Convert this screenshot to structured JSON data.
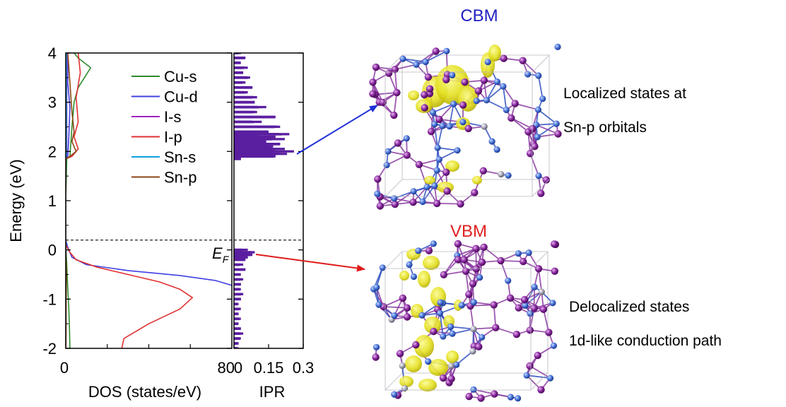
{
  "chart_data": [
    {
      "type": "line",
      "xlabel": "DOS (states/eV)",
      "ylabel": "Energy (eV)",
      "xlim": [
        0,
        80
      ],
      "ylim": [
        -2,
        4
      ],
      "xticks": [
        "0",
        "80"
      ],
      "yticks": [
        "-2",
        "-1",
        "0",
        "1",
        "2",
        "3",
        "4"
      ],
      "fermi_level": 0.2,
      "fermi_label_main": "E",
      "fermi_label_sub": "F",
      "legend_position": "top-right",
      "series": [
        {
          "name": "Cu-s",
          "color": "#2e8b2e",
          "points": [
            [
              4,
              4.0
            ],
            [
              6,
              3.9
            ],
            [
              12,
              3.7
            ],
            [
              6,
              3.3
            ],
            [
              4,
              3.0
            ],
            [
              3,
              2.5
            ],
            [
              2,
              1.9
            ],
            [
              0.5,
              1.85
            ],
            [
              0,
              1.0
            ],
            [
              0,
              0.1
            ],
            [
              0.5,
              -0.3
            ],
            [
              1,
              -0.8
            ],
            [
              1.5,
              -1.2
            ],
            [
              1.8,
              -1.6
            ],
            [
              2,
              -2.0
            ]
          ]
        },
        {
          "name": "Cu-d",
          "color": "#4040e0",
          "points": [
            [
              1,
              4.0
            ],
            [
              1,
              3.4
            ],
            [
              2,
              2.9
            ],
            [
              1.5,
              2.3
            ],
            [
              1,
              1.9
            ],
            [
              0,
              1.85
            ],
            [
              0,
              0.2
            ],
            [
              1,
              0.05
            ],
            [
              3,
              -0.15
            ],
            [
              10,
              -0.3
            ],
            [
              30,
              -0.42
            ],
            [
              55,
              -0.52
            ],
            [
              72,
              -0.62
            ],
            [
              80,
              -0.72
            ]
          ]
        },
        {
          "name": "I-s",
          "color": "#a020c0",
          "points": [
            [
              0.5,
              4.0
            ],
            [
              0.5,
              2.5
            ],
            [
              0.5,
              1.9
            ],
            [
              0,
              1.85
            ],
            [
              0,
              -2.0
            ]
          ]
        },
        {
          "name": "I-p",
          "color": "#e03030",
          "points": [
            [
              6,
              4.0
            ],
            [
              7,
              3.6
            ],
            [
              5,
              3.1
            ],
            [
              6,
              2.6
            ],
            [
              4,
              2.3
            ],
            [
              6,
              2.05
            ],
            [
              3,
              1.9
            ],
            [
              0,
              1.85
            ],
            [
              0,
              0.1
            ],
            [
              2,
              -0.05
            ],
            [
              5,
              -0.2
            ],
            [
              15,
              -0.35
            ],
            [
              30,
              -0.5
            ],
            [
              45,
              -0.65
            ],
            [
              55,
              -0.8
            ],
            [
              61,
              -0.97
            ],
            [
              55,
              -1.2
            ],
            [
              40,
              -1.5
            ],
            [
              28,
              -1.8
            ],
            [
              27,
              -2.0
            ]
          ]
        },
        {
          "name": "Sn-s",
          "color": "#10a0e0",
          "points": [
            [
              0.3,
              4.0
            ],
            [
              0.3,
              1.9
            ],
            [
              0,
              1.85
            ],
            [
              0,
              -2.0
            ]
          ]
        },
        {
          "name": "Sn-p",
          "color": "#8b4513",
          "points": [
            [
              1,
              4.0
            ],
            [
              2,
              3.4
            ],
            [
              3,
              2.8
            ],
            [
              4,
              2.4
            ],
            [
              3,
              2.2
            ],
            [
              5,
              2.0
            ],
            [
              2,
              1.9
            ],
            [
              0,
              1.85
            ],
            [
              0,
              -0.1
            ],
            [
              0.3,
              -0.5
            ],
            [
              0.2,
              -1.0
            ],
            [
              0.1,
              -2.0
            ]
          ]
        }
      ]
    },
    {
      "type": "bar",
      "xlabel": "IPR",
      "xlim": [
        0,
        0.3
      ],
      "ylim": [
        -2,
        4
      ],
      "xticks": [
        "0",
        "0.15",
        "0.3"
      ],
      "color": "#5a1ea0",
      "bins": [
        [
          4.0,
          0.03
        ],
        [
          3.9,
          0.05
        ],
        [
          3.8,
          0.03
        ],
        [
          3.7,
          0.06
        ],
        [
          3.6,
          0.04
        ],
        [
          3.5,
          0.07
        ],
        [
          3.4,
          0.05
        ],
        [
          3.3,
          0.08
        ],
        [
          3.2,
          0.06
        ],
        [
          3.1,
          0.1
        ],
        [
          3.0,
          0.09
        ],
        [
          2.9,
          0.14
        ],
        [
          2.8,
          0.1
        ],
        [
          2.7,
          0.18
        ],
        [
          2.6,
          0.12
        ],
        [
          2.5,
          0.2
        ],
        [
          2.4,
          0.15
        ],
        [
          2.35,
          0.24
        ],
        [
          2.3,
          0.18
        ],
        [
          2.25,
          0.22
        ],
        [
          2.2,
          0.14
        ],
        [
          2.15,
          0.2
        ],
        [
          2.1,
          0.17
        ],
        [
          2.05,
          0.22
        ],
        [
          2.0,
          0.26
        ],
        [
          1.95,
          0.23
        ],
        [
          1.9,
          0.18
        ],
        [
          1.85,
          0.03
        ],
        [
          0.0,
          0.06
        ],
        [
          -0.05,
          0.09
        ],
        [
          -0.1,
          0.08
        ],
        [
          -0.15,
          0.06
        ],
        [
          -0.2,
          0.05
        ],
        [
          -0.3,
          0.04
        ],
        [
          -0.4,
          0.05
        ],
        [
          -0.5,
          0.03
        ],
        [
          -0.6,
          0.04
        ],
        [
          -0.7,
          0.03
        ],
        [
          -0.8,
          0.03
        ],
        [
          -0.9,
          0.04
        ],
        [
          -1.0,
          0.03
        ],
        [
          -1.1,
          0.02
        ],
        [
          -1.2,
          0.03
        ],
        [
          -1.3,
          0.02
        ],
        [
          -1.4,
          0.03
        ],
        [
          -1.5,
          0.02
        ],
        [
          -1.6,
          0.03
        ],
        [
          -1.7,
          0.04
        ],
        [
          -1.8,
          0.03
        ],
        [
          -1.9,
          0.02
        ],
        [
          -2.0,
          0.02
        ]
      ]
    }
  ],
  "annotations": {
    "cbm_label": "CBM",
    "cbm_color": "#2020c0",
    "vbm_label": "VBM",
    "vbm_color": "#e02020",
    "cbm_text_line1": "Localized states at",
    "cbm_text_line2": "Sn-p orbitals",
    "vbm_text_line1": "Delocalized states",
    "vbm_text_line2": "1d-like conduction path"
  },
  "structure_colors": {
    "atom_purple": "#7a1f8a",
    "atom_blue": "#3a64c8",
    "atom_gray": "#9a9aa8",
    "bond_blue": "#3050c0",
    "bond_purple": "#8a3aa0",
    "isosurface": "#e0e020"
  }
}
